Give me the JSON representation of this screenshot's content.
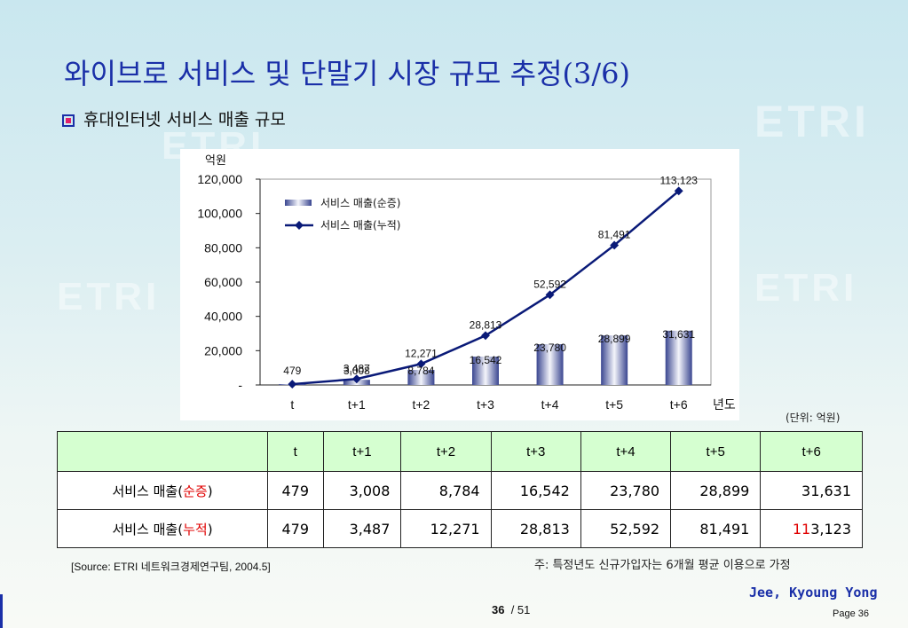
{
  "watermark": "ETRI",
  "slide": {
    "title": "와이브로 서비스 및 단말기 시장 규모 추정(3/6)",
    "subtitle": "휴대인터넷 서비스 매출 규모"
  },
  "chart_data": {
    "type": "bar+line",
    "categories": [
      "t",
      "t+1",
      "t+2",
      "t+3",
      "t+4",
      "t+5",
      "t+6"
    ],
    "series": [
      {
        "name": "서비스 매출(순증)",
        "kind": "bar",
        "values": [
          479,
          3008,
          8784,
          16542,
          23780,
          28899,
          31631
        ],
        "labels": [
          "479",
          "3,008",
          "8,784",
          "16,542",
          "23,780",
          "28,899",
          "31,631"
        ]
      },
      {
        "name": "서비스 매출(누적)",
        "kind": "line",
        "values": [
          479,
          3487,
          12271,
          28813,
          52592,
          81491,
          113123
        ],
        "labels": [
          "",
          "3,487",
          "12,271",
          "28,813",
          "52,592",
          "81,491",
          "113,123"
        ]
      }
    ],
    "ylabel": "억원",
    "xlabel": "년도",
    "ylim": [
      0,
      120000
    ],
    "yticks": [
      0,
      20000,
      40000,
      60000,
      80000,
      100000,
      120000
    ],
    "ytick_labels": [
      "-",
      "20,000",
      "40,000",
      "60,000",
      "80,000",
      "100,000",
      "120,000"
    ],
    "legend_placement": "top-left",
    "grid": false,
    "colors": {
      "bar": "#7078b8",
      "line": "#0a1a78"
    }
  },
  "unit_note": "(단위: 억원)",
  "table": {
    "headers": [
      "",
      "t",
      "t+1",
      "t+2",
      "t+3",
      "t+4",
      "t+5",
      "t+6"
    ],
    "rows": [
      {
        "label_prefix": "서비스 매출(",
        "label_highlight": "순증",
        "label_suffix": ")",
        "values": [
          "479",
          "3,008",
          "8,784",
          "16,542",
          "23,780",
          "28,899",
          "31,631"
        ]
      },
      {
        "label_prefix": "서비스 매출(",
        "label_highlight": "누적",
        "label_suffix": ")",
        "values": [
          "479",
          "3,487",
          "12,271",
          "28,813",
          "52,592",
          "81,491"
        ],
        "last_red": "11",
        "last_rest": "3,123"
      }
    ]
  },
  "source": "[Source: ETRI 네트워크경제연구팀, 2004.5]",
  "footnote": "주: 특정년도 신규가입자는 6개월 평균 이용으로 가정",
  "author": "Jee, Kyoung Yong",
  "page": {
    "current": "36",
    "total": "/ 51",
    "label": "Page 36"
  }
}
